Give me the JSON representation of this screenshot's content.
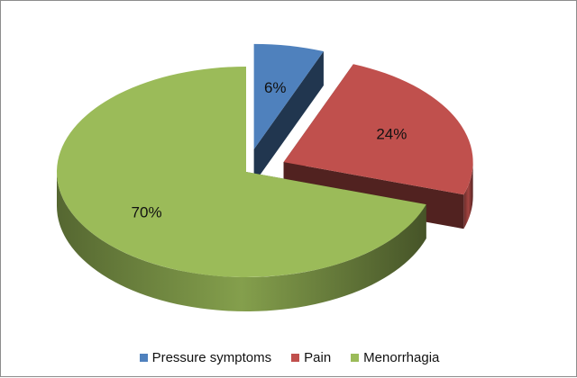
{
  "chart_data": {
    "type": "pie",
    "style": "3d-exploded",
    "categories": [
      "Pressure symptoms",
      "Pain",
      "Menorrhagia"
    ],
    "values": [
      6,
      24,
      70
    ],
    "data_labels": [
      "6%",
      "24%",
      "70%"
    ],
    "colors": [
      "#4f81bd",
      "#c0504d",
      "#9bbb59"
    ],
    "legend_position": "bottom",
    "title": ""
  }
}
